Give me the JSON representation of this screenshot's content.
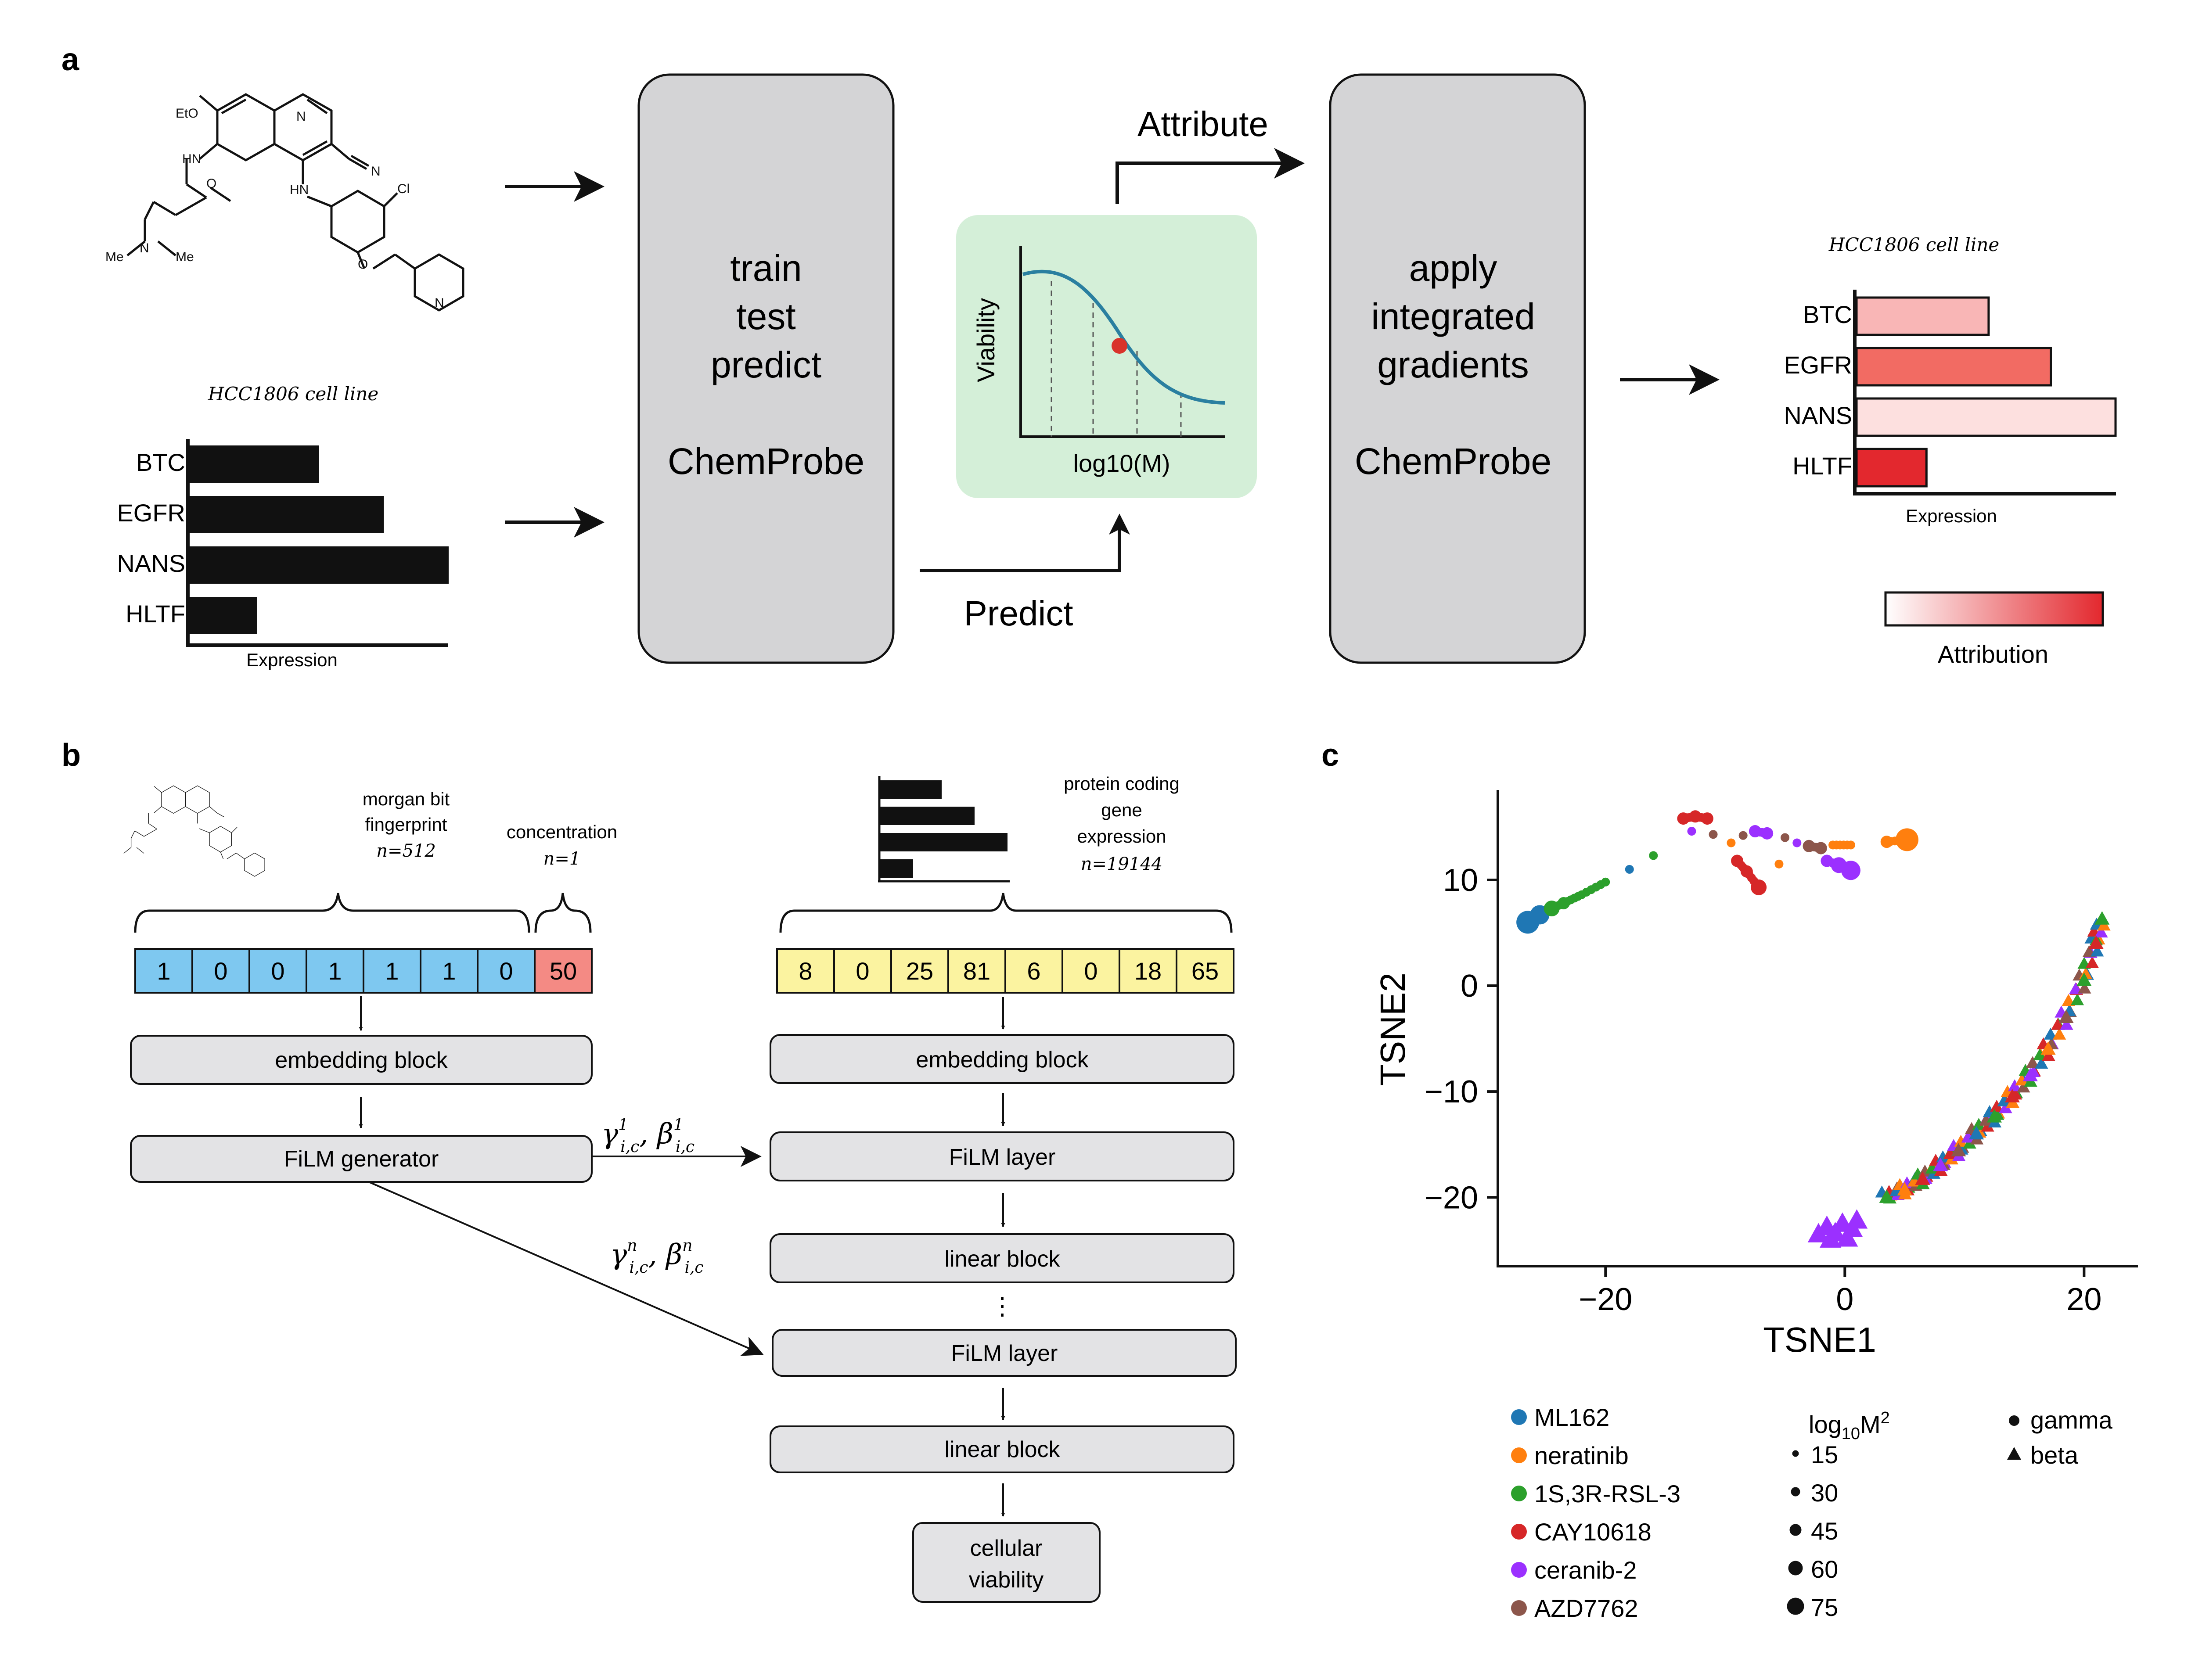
{
  "panel_labels": {
    "a": "a",
    "b": "b",
    "c": "c"
  },
  "panel_a": {
    "molecule_labels": {
      "eto": "EtO",
      "n_ring": "N",
      "cn_n": "N",
      "nh1": "HN",
      "nh2": "HN",
      "cl": "Cl",
      "o1": "O",
      "o2": "O",
      "n_me": "N",
      "me1": "Me",
      "me2": "Me",
      "n_pyr": "N"
    },
    "cell_line_title": "HCC1806 cell line",
    "genes": [
      "BTC",
      "EGFR",
      "NANS",
      "HLTF"
    ],
    "expression_values": [
      0.5,
      0.75,
      1.0,
      0.26
    ],
    "expression_label": "Expression",
    "model_box": {
      "line1": "train",
      "line2": "test",
      "line3": "predict",
      "name": "ChemProbe"
    },
    "curve_box": {
      "ylabel": "Viability",
      "xlabel": "log10(M)",
      "curve_color": "#2a7fa0",
      "dot_color": "#d9332b",
      "bg_color": "#d4efd8"
    },
    "predict_label": "Predict",
    "attribute_label": "Attribute",
    "ig_box": {
      "line1": "apply",
      "line2": "integrated",
      "line3": "gradients",
      "name": "ChemProbe"
    },
    "attr_title": "HCC1806 cell line",
    "attr_genes": [
      "BTC",
      "EGFR",
      "NANS",
      "HLTF"
    ],
    "attr_expression_values": [
      0.51,
      0.75,
      1.0,
      0.27
    ],
    "attr_colors": [
      "#f9b6b6",
      "#f26b63",
      "#fde0df",
      "#e3282e"
    ],
    "attr_expression_label": "Expression",
    "attribution_label": "Attribution",
    "attribution_gradient": [
      "#ffffff",
      "#e3282e"
    ]
  },
  "panel_b": {
    "fingerprint_label": [
      "morgan bit",
      "fingerprint"
    ],
    "fingerprint_n": "n=512",
    "concentration_label": "concentration",
    "concentration_n": "n=1",
    "fingerprint_bits": [
      "1",
      "0",
      "0",
      "1",
      "1",
      "1",
      "0"
    ],
    "concentration_value": "50",
    "bit_color": "#7ec8f0",
    "conc_color": "#f48a84",
    "expr_label": [
      "protein coding",
      "gene",
      "expression"
    ],
    "expr_n": "n=19144",
    "expr_values": [
      "8",
      "0",
      "25",
      "81",
      "6",
      "0",
      "18",
      "65"
    ],
    "expr_color": "#fbf3a0",
    "left_blocks": [
      "embedding block",
      "FiLM generator"
    ],
    "right_blocks": [
      "embedding block",
      "FiLM layer",
      "linear block",
      "FiLM layer",
      "linear block"
    ],
    "output_block": [
      "cellular",
      "viability"
    ],
    "ellipsis": "⋮",
    "film_arrow_1": {
      "gamma": "γ",
      "beta": "β",
      "sup": "1",
      "sub": "i,c"
    },
    "film_arrow_n": {
      "gamma": "γ",
      "beta": "β",
      "sup": "n",
      "sub": "i,c"
    }
  },
  "panel_c": {
    "chart_data": {
      "type": "scatter",
      "xlabel": "TSNE1",
      "ylabel": "TSNE2",
      "xlim": [
        -29,
        24.5
      ],
      "ylim": [
        -26.5,
        18.5
      ],
      "xticks": [
        -20,
        0,
        20
      ],
      "yticks": [
        10,
        0,
        -10,
        -20
      ],
      "xtick_labels": [
        "−20",
        "0",
        "20"
      ],
      "ytick_labels": [
        "10",
        "0",
        "−10",
        "−20"
      ],
      "series": [
        {
          "name": "ML162",
          "color": "#1f77b4"
        },
        {
          "name": "neratinib",
          "color": "#ff7f0e"
        },
        {
          "name": "1S,3R-RSL-3",
          "color": "#2ca02c"
        },
        {
          "name": "CAY10618",
          "color": "#d62728"
        },
        {
          "name": "ceranib-2",
          "color": "#9b30ff"
        },
        {
          "name": "AZD7762",
          "color": "#8c564b"
        }
      ],
      "gamma_points": [
        {
          "s": 0,
          "x": -26.5,
          "y": 6.0,
          "r": 75
        },
        {
          "s": 0,
          "x": -25.5,
          "y": 6.7,
          "r": 60
        },
        {
          "s": 2,
          "x": -24.5,
          "y": 7.3,
          "r": 45
        },
        {
          "s": 2,
          "x": -23.5,
          "y": 7.8,
          "r": 30
        },
        {
          "s": 2,
          "x": -22.0,
          "y": 8.6,
          "r": 15
        },
        {
          "s": 2,
          "x": -20.0,
          "y": 9.8,
          "r": 15
        },
        {
          "s": 0,
          "x": -18.0,
          "y": 11.0,
          "r": 15
        },
        {
          "s": 2,
          "x": -16.0,
          "y": 12.3,
          "r": 15
        },
        {
          "s": 3,
          "x": -13.5,
          "y": 15.8,
          "r": 30
        },
        {
          "s": 3,
          "x": -12.5,
          "y": 16.0,
          "r": 30
        },
        {
          "s": 3,
          "x": -11.5,
          "y": 15.8,
          "r": 30
        },
        {
          "s": 4,
          "x": -12.8,
          "y": 14.6,
          "r": 15
        },
        {
          "s": 5,
          "x": -11.0,
          "y": 14.3,
          "r": 15
        },
        {
          "s": 1,
          "x": -9.5,
          "y": 13.5,
          "r": 15
        },
        {
          "s": 5,
          "x": -8.5,
          "y": 14.2,
          "r": 15
        },
        {
          "s": 4,
          "x": -7.5,
          "y": 14.6,
          "r": 30
        },
        {
          "s": 4,
          "x": -6.5,
          "y": 14.4,
          "r": 30
        },
        {
          "s": 5,
          "x": -5.0,
          "y": 14.0,
          "r": 15
        },
        {
          "s": 4,
          "x": -4.0,
          "y": 13.5,
          "r": 15
        },
        {
          "s": 5,
          "x": -3.0,
          "y": 13.2,
          "r": 30
        },
        {
          "s": 5,
          "x": -2.0,
          "y": 13.0,
          "r": 30
        },
        {
          "s": 1,
          "x": -1.0,
          "y": 13.3,
          "r": 15
        },
        {
          "s": 1,
          "x": 0.5,
          "y": 13.3,
          "r": 15
        },
        {
          "s": 4,
          "x": -1.5,
          "y": 11.8,
          "r": 30
        },
        {
          "s": 4,
          "x": -0.5,
          "y": 11.4,
          "r": 45
        },
        {
          "s": 4,
          "x": 0.5,
          "y": 10.9,
          "r": 60
        },
        {
          "s": 3,
          "x": -9.0,
          "y": 11.8,
          "r": 30
        },
        {
          "s": 3,
          "x": -8.2,
          "y": 10.8,
          "r": 30
        },
        {
          "s": 3,
          "x": -7.2,
          "y": 9.3,
          "r": 45
        },
        {
          "s": 1,
          "x": -5.5,
          "y": 11.5,
          "r": 15
        },
        {
          "s": 1,
          "x": 3.5,
          "y": 13.6,
          "r": 30
        },
        {
          "s": 1,
          "x": 5.2,
          "y": 13.8,
          "r": 75
        }
      ],
      "beta_band": [
        {
          "s": 2,
          "x": 3.5,
          "y": -20.0
        },
        {
          "s": 1,
          "x": 5.0,
          "y": -19.3
        },
        {
          "s": 3,
          "x": 6.5,
          "y": -18.3
        },
        {
          "s": 4,
          "x": 8.0,
          "y": -17.0
        },
        {
          "s": 5,
          "x": 9.5,
          "y": -15.6
        },
        {
          "s": 0,
          "x": 11.0,
          "y": -14.0
        },
        {
          "s": 2,
          "x": 12.5,
          "y": -12.4
        },
        {
          "s": 3,
          "x": 14.0,
          "y": -10.5
        },
        {
          "s": 4,
          "x": 15.5,
          "y": -8.5
        },
        {
          "s": 1,
          "x": 17.0,
          "y": -6.0
        },
        {
          "s": 5,
          "x": 18.5,
          "y": -3.0
        },
        {
          "s": 2,
          "x": 20.0,
          "y": 0.5
        },
        {
          "s": 3,
          "x": 21.0,
          "y": 4.0
        },
        {
          "s": 2,
          "x": 21.5,
          "y": 6.3
        }
      ],
      "beta_cluster": [
        {
          "s": 4,
          "x": -2.2,
          "y": -23.5
        },
        {
          "s": 4,
          "x": -1.5,
          "y": -22.8
        },
        {
          "s": 4,
          "x": -0.8,
          "y": -23.4
        },
        {
          "s": 4,
          "x": -0.2,
          "y": -22.5
        },
        {
          "s": 4,
          "x": 0.6,
          "y": -23.0
        },
        {
          "s": 4,
          "x": -1.2,
          "y": -24.0
        },
        {
          "s": 4,
          "x": 0.2,
          "y": -23.9
        },
        {
          "s": 4,
          "x": 1.0,
          "y": -22.2
        }
      ],
      "size_legend_title": "log10M2",
      "size_legend": [
        "15",
        "30",
        "45",
        "60",
        "75"
      ],
      "shape_legend": [
        "gamma",
        "beta"
      ]
    }
  }
}
